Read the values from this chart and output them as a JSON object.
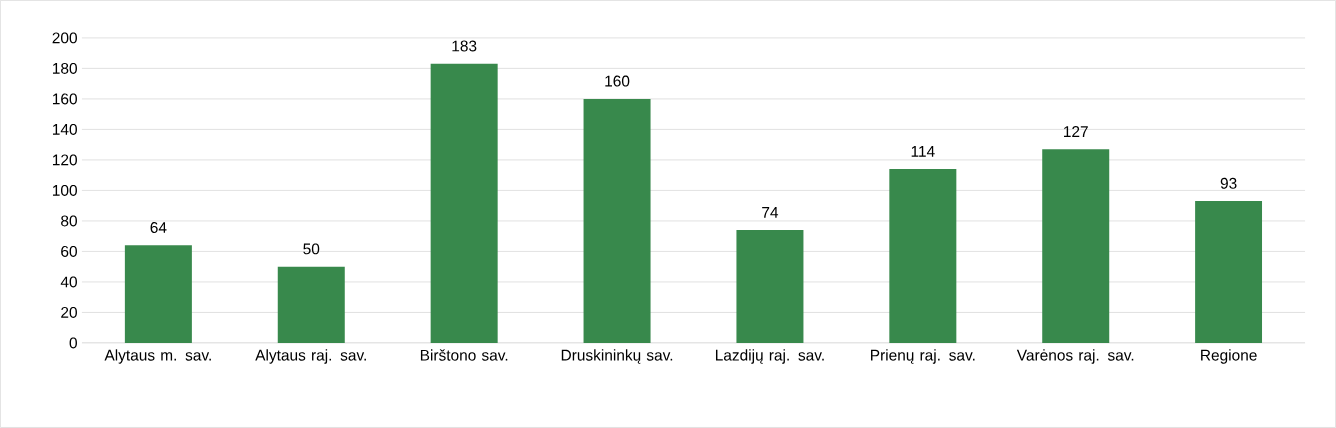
{
  "chart_data": {
    "type": "bar",
    "categories": [
      "Alytaus m. sav.",
      "Alytaus raj. sav.",
      "Birštono sav.",
      "Druskininkų sav.",
      "Lazdijų raj. sav.",
      "Prienų raj. sav.",
      "Varėnos raj. sav.",
      "Regione"
    ],
    "values": [
      64,
      50,
      183,
      160,
      74,
      114,
      127,
      93
    ],
    "color": "#38894c",
    "ylim": [
      0,
      200
    ],
    "yticks": [
      0,
      20,
      40,
      60,
      80,
      100,
      120,
      140,
      160,
      180,
      200
    ],
    "grid": "y",
    "data_labels": true
  }
}
